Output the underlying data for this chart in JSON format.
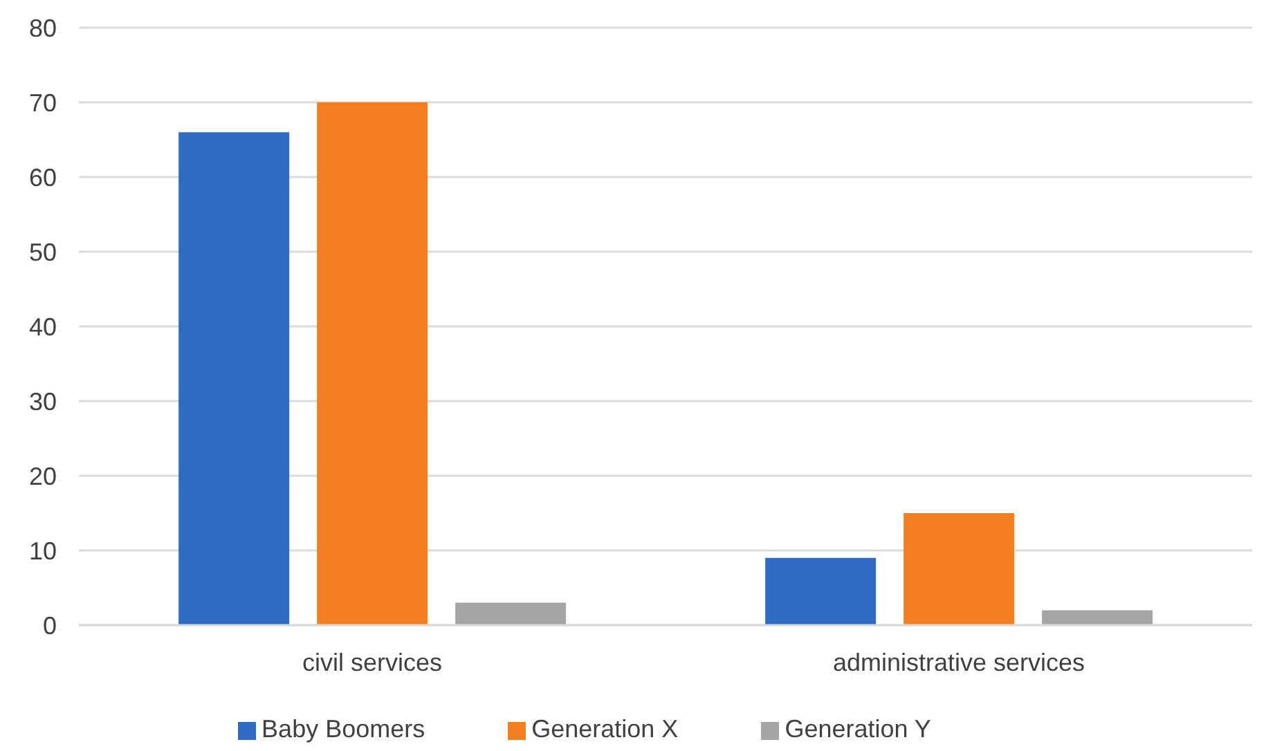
{
  "chart_data": {
    "type": "bar",
    "categories": [
      "civil services",
      "administrative services"
    ],
    "series": [
      {
        "name": "Baby Boomers",
        "color": "#2e6cc4",
        "values": [
          66,
          9
        ]
      },
      {
        "name": "Generation X",
        "color": "#f47f20",
        "values": [
          70,
          15
        ]
      },
      {
        "name": "Generation Y",
        "color": "#a5a5a5",
        "values": [
          3,
          2
        ]
      }
    ],
    "ylim": [
      0,
      80
    ],
    "yticks": [
      0,
      10,
      20,
      30,
      40,
      50,
      60,
      70,
      80
    ],
    "grid": "y",
    "legend": "bottom"
  }
}
